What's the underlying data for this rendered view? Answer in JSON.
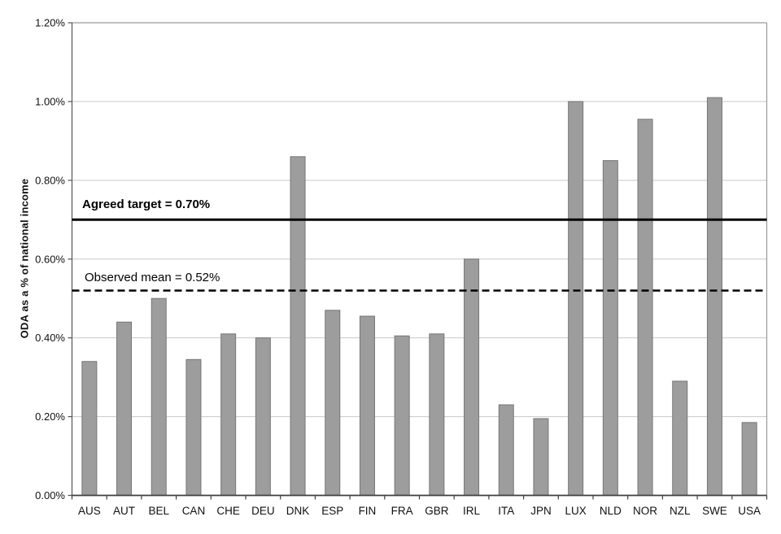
{
  "chart_data": {
    "type": "bar",
    "title": "",
    "xlabel": "",
    "ylabel": "ODA as a % of national income",
    "unit": "%",
    "categories": [
      "AUS",
      "AUT",
      "BEL",
      "CAN",
      "CHE",
      "DEU",
      "DNK",
      "ESP",
      "FIN",
      "FRA",
      "GBR",
      "IRL",
      "ITA",
      "JPN",
      "LUX",
      "NLD",
      "NOR",
      "NZL",
      "SWE",
      "USA"
    ],
    "values": [
      0.34,
      0.44,
      0.5,
      0.345,
      0.41,
      0.4,
      0.86,
      0.47,
      0.455,
      0.405,
      0.41,
      0.6,
      0.23,
      0.195,
      1.0,
      0.85,
      0.955,
      0.29,
      1.01,
      0.185
    ],
    "ylim": [
      0,
      1.2
    ],
    "ytick_step": 0.2,
    "ytick_labels": [
      "0.00%",
      "0.20%",
      "0.40%",
      "0.60%",
      "0.80%",
      "1.00%",
      "1.20%"
    ],
    "grid": "horizontal",
    "legend": "none",
    "annotations": [
      {
        "label": "Agreed target = 0.70%",
        "value": 0.7,
        "style": "solid",
        "bold": true
      },
      {
        "label": "Observed mean = 0.52%",
        "value": 0.52,
        "style": "dashed",
        "bold": false
      }
    ],
    "colors": {
      "bar_fill": "#9d9d9d",
      "bar_border": "#767676",
      "gridline": "#c9c9c9",
      "plot_border": "#999999",
      "axis": "#3f3f3f",
      "tick": "#555555",
      "annotation_line": "#000000",
      "text": "#111111",
      "background": "#ffffff"
    }
  }
}
